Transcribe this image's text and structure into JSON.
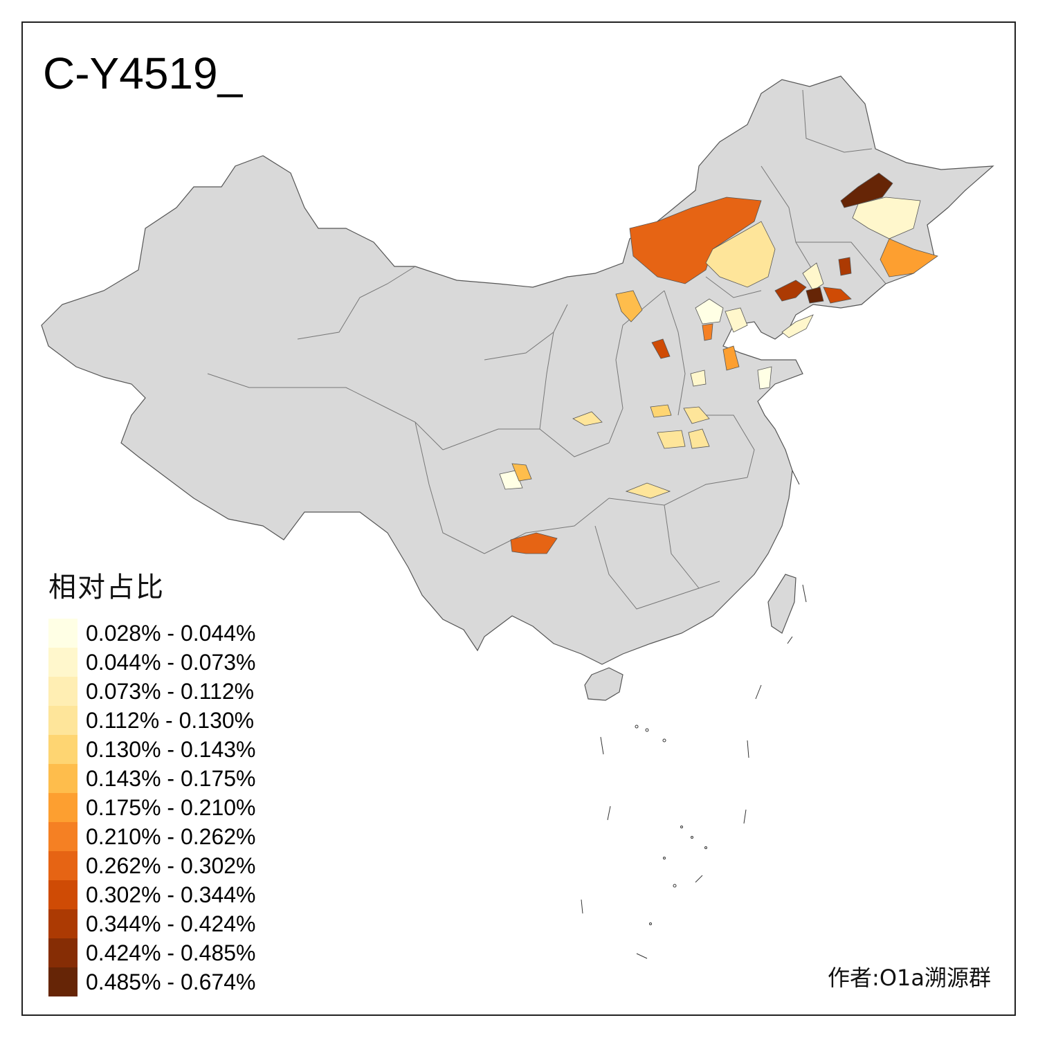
{
  "map": {
    "title": "C-Y4519_",
    "author": "作者:O1a溯源群",
    "base_color": "#d9d9d9",
    "border_color": "#555555"
  },
  "legend": {
    "title": "相对占比",
    "items": [
      {
        "label": "0.028% - 0.044%",
        "color": "#ffffe5"
      },
      {
        "label": "0.044% - 0.073%",
        "color": "#fff7cc"
      },
      {
        "label": "0.073% - 0.112%",
        "color": "#ffeeb3"
      },
      {
        "label": "0.112% - 0.130%",
        "color": "#fee59a"
      },
      {
        "label": "0.130% - 0.143%",
        "color": "#fed572"
      },
      {
        "label": "0.143% - 0.175%",
        "color": "#febd4c"
      },
      {
        "label": "0.175% - 0.210%",
        "color": "#fd9f30"
      },
      {
        "label": "0.210% - 0.262%",
        "color": "#f58023"
      },
      {
        "label": "0.262% - 0.302%",
        "color": "#e66414"
      },
      {
        "label": "0.302% - 0.344%",
        "color": "#cf4b05"
      },
      {
        "label": "0.344% - 0.424%",
        "color": "#ac3a03"
      },
      {
        "label": "0.424% - 0.485%",
        "color": "#862d05"
      },
      {
        "label": "0.485% - 0.674%",
        "color": "#662506"
      }
    ]
  }
}
